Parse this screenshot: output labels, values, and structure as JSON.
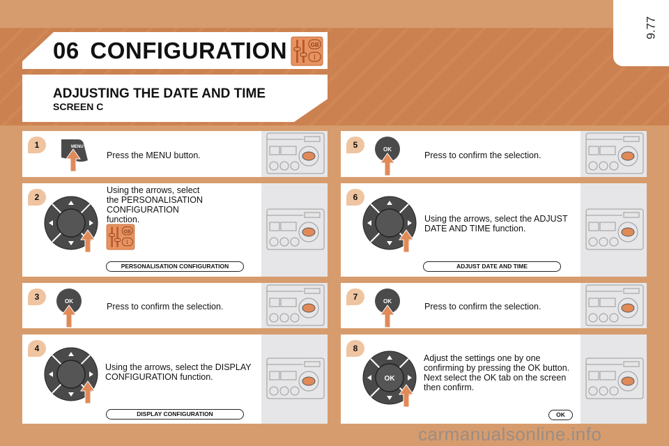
{
  "page_number": "9.77",
  "chapter": {
    "number": "06",
    "title": "CONFIGURATION",
    "icon": "configuration-gb-icon"
  },
  "section": {
    "title": "ADJUSTING THE DATE AND TIME",
    "subtitle": "SCREEN C"
  },
  "colors": {
    "background": "#d79c6d",
    "accent": "#e08a58",
    "badge": "#efc4a0"
  },
  "steps": [
    {
      "n": "1",
      "text": "Press the MENU button.",
      "control": "menu",
      "button_label": "MENU"
    },
    {
      "n": "2",
      "text": "Using the arrows, select the PERSONALISATION CONFIGURATION function.",
      "control": "dpad",
      "screen_label": "PERSONALISATION CONFIGURATION"
    },
    {
      "n": "3",
      "text": "Press to confirm the selection.",
      "control": "ok",
      "button_label": "OK"
    },
    {
      "n": "4",
      "text": "Using the arrows, select the DISPLAY CONFIGURATION function.",
      "control": "dpad",
      "screen_label": "DISPLAY CONFIGURATION"
    },
    {
      "n": "5",
      "text": "Press to confirm the selection.",
      "control": "ok",
      "button_label": "OK"
    },
    {
      "n": "6",
      "text": "Using the arrows, select the ADJUST DATE AND TIME function.",
      "control": "dpad",
      "screen_label": "ADJUST DATE AND TIME"
    },
    {
      "n": "7",
      "text": "Press to confirm the selection.",
      "control": "ok",
      "button_label": "OK"
    },
    {
      "n": "8",
      "text": "Adjust the settings one by one confirming by pressing the OK button. Next select the OK tab on the screen then confirm.",
      "control": "dpad-ok",
      "button_label": "OK",
      "screen_label": "OK"
    }
  ],
  "watermark": "carmanualsonline.info"
}
